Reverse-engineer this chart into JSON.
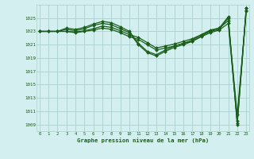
{
  "title": "Graphe pression niveau de la mer (hPa)",
  "bg_color": "#d4efef",
  "grid_color": "#aad0d0",
  "line_color": "#1a5e1a",
  "x_min": 0,
  "x_max": 23,
  "y_min": 1008.0,
  "y_max": 1027.0,
  "y_ticks": [
    1009,
    1011,
    1013,
    1015,
    1017,
    1019,
    1021,
    1023,
    1025
  ],
  "x_ticks": [
    0,
    1,
    2,
    3,
    4,
    5,
    6,
    7,
    8,
    9,
    10,
    11,
    12,
    13,
    14,
    15,
    16,
    17,
    18,
    19,
    20,
    21,
    22,
    23
  ],
  "series": [
    [
      1023.0,
      1023.0,
      1023.0,
      1023.0,
      1022.8,
      1023.0,
      1023.2,
      1023.5,
      1023.3,
      1022.8,
      1022.2,
      1021.8,
      1021.0,
      1020.2,
      1020.5,
      1020.8,
      1021.2,
      1021.5,
      1022.2,
      1022.8,
      1023.2,
      1024.2,
      1009.5,
      1026.5
    ],
    [
      1023.0,
      1023.0,
      1023.0,
      1023.0,
      1022.9,
      1023.1,
      1023.4,
      1023.8,
      1023.6,
      1023.1,
      1022.5,
      1022.1,
      1021.3,
      1020.5,
      1020.8,
      1021.1,
      1021.5,
      1021.9,
      1022.5,
      1023.1,
      1023.5,
      1024.6,
      1010.5,
      1026.0
    ],
    [
      1023.0,
      1023.0,
      1023.0,
      1023.3,
      1023.1,
      1023.4,
      1023.9,
      1024.2,
      1024.0,
      1023.4,
      1022.8,
      1021.0,
      1019.8,
      1019.3,
      1020.0,
      1020.6,
      1021.0,
      1021.5,
      1022.3,
      1023.0,
      1023.3,
      1025.0,
      1009.2,
      1026.2
    ],
    [
      1023.0,
      1023.0,
      1023.0,
      1023.5,
      1023.3,
      1023.6,
      1024.1,
      1024.5,
      1024.3,
      1023.7,
      1023.0,
      1021.2,
      1020.0,
      1019.5,
      1020.2,
      1020.8,
      1021.2,
      1021.7,
      1022.5,
      1023.2,
      1023.5,
      1025.2,
      1009.0,
      1026.5
    ]
  ]
}
